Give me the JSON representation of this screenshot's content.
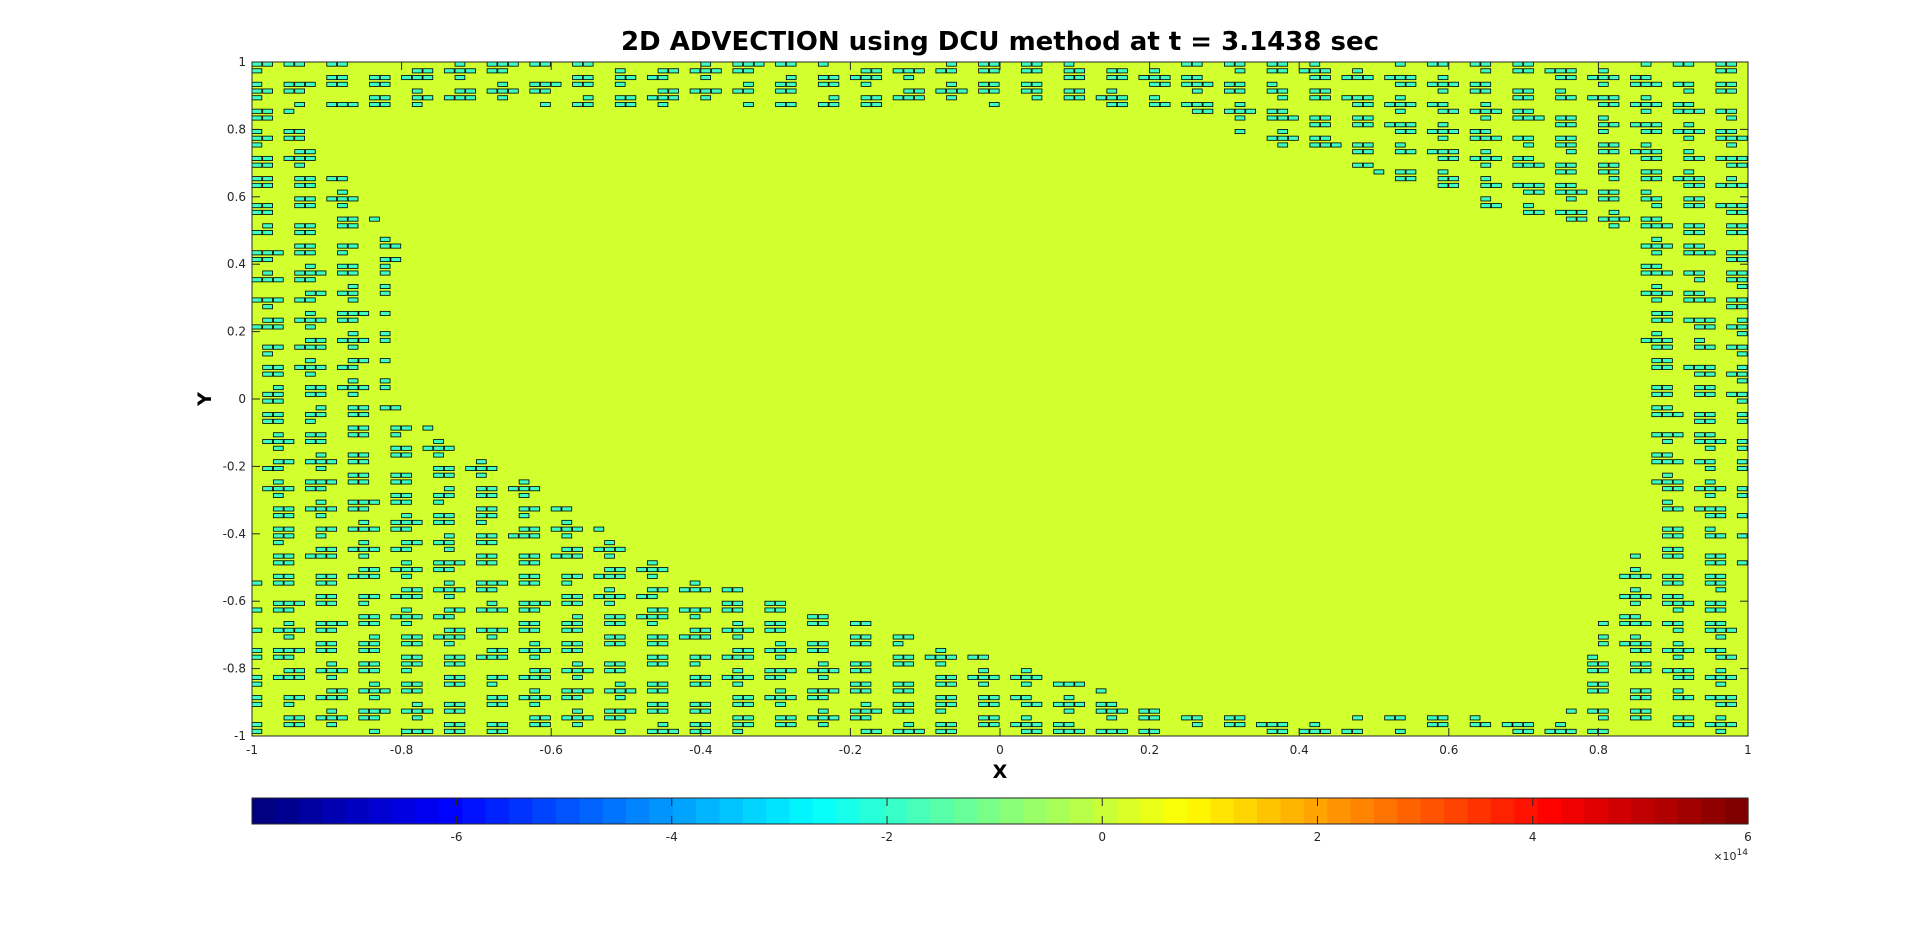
{
  "chart_data": {
    "type": "contour",
    "title": "2D ADVECTION using DCU method at t = 3.1438 sec",
    "xlabel": "X",
    "ylabel": "Y",
    "xlim": [
      -1,
      1
    ],
    "ylim": [
      -1,
      1
    ],
    "xticks": [
      -1,
      -0.8,
      -0.6,
      -0.4,
      -0.2,
      0,
      0.2,
      0.4,
      0.6,
      0.8,
      1
    ],
    "xtick_labels": [
      "-1",
      "-0.8",
      "-0.6",
      "-0.4",
      "-0.2",
      "0",
      "0.2",
      "0.4",
      "0.6",
      "0.8",
      "1"
    ],
    "yticks": [
      -1,
      -0.8,
      -0.6,
      -0.4,
      -0.2,
      0,
      0.2,
      0.4,
      0.6,
      0.8,
      1
    ],
    "ytick_labels": [
      "-1",
      "-0.8",
      "-0.6",
      "-0.4",
      "-0.2",
      "0",
      "0.2",
      "0.4",
      "0.6",
      "0.8",
      "1"
    ],
    "grid": false,
    "field": {
      "background_value": 0,
      "oscillation_values": [
        -2,
        0
      ],
      "background_color": "#d2ff2e",
      "band_color": "#3dffc2",
      "line_color": "#000000"
    },
    "colorbar": {
      "location": "below",
      "colormap": "jet",
      "clim": [
        -7.9,
        6
      ],
      "ticks": [
        -6,
        -4,
        -2,
        0,
        2,
        4,
        6
      ],
      "tick_labels": [
        "-6",
        "-4",
        "-2",
        "0",
        "2",
        "4",
        "6"
      ],
      "exponent_base": "×10",
      "exponent_power": "14"
    }
  }
}
